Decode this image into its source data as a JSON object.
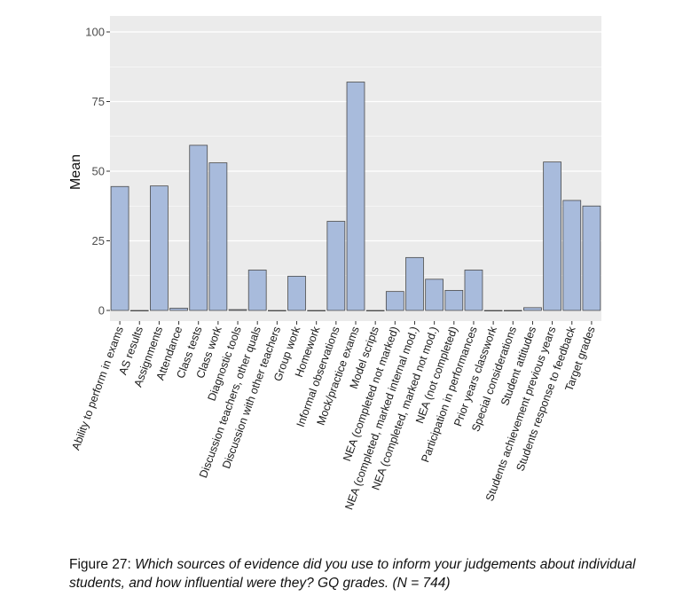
{
  "chart_data": {
    "type": "bar",
    "title": "",
    "xlabel": "",
    "ylabel": "Mean",
    "ylim": [
      0,
      100
    ],
    "yticks": [
      0,
      25,
      50,
      75,
      100
    ],
    "grid": true,
    "categories": [
      "Ability to perform in exams",
      "AS results",
      "Assignments",
      "Attendance",
      "Class tests",
      "Class work",
      "Diagnostic tools",
      "Discussion teachers, other quals",
      "Discussion with other teachers",
      "Group work",
      "Homework",
      "Informal observations",
      "Mock/practice exams",
      "Model scripts",
      "NEA (completed not marked)",
      "NEA (completed, marked internal mod.)",
      "NEA (completed, marked not mod.)",
      "NEA (not completed)",
      "Participation in performances",
      "Prior years classwork",
      "Special considerations",
      "Student attitudes",
      "Students achievement previous years",
      "Students response to feedback",
      "Target grades"
    ],
    "values": [
      44.5,
      0,
      44.7,
      0.8,
      59.3,
      53,
      0.3,
      14.5,
      0,
      12.3,
      0,
      32,
      82,
      0,
      6.8,
      19,
      11.2,
      7.2,
      14.5,
      0,
      0,
      1,
      53.3,
      39.5,
      37.5
    ],
    "colors": {
      "bar_fill": "#a8bbdc",
      "bar_stroke": "#4a4a4a",
      "panel": "#ebebeb",
      "grid": "#ffffff",
      "axis_text": "#4d4d4d"
    }
  },
  "caption": {
    "label": "Figure 27: ",
    "text": "Which sources of evidence did you use to inform your judgements about individual students, and how influential were they? GQ grades. (N = 744)"
  }
}
